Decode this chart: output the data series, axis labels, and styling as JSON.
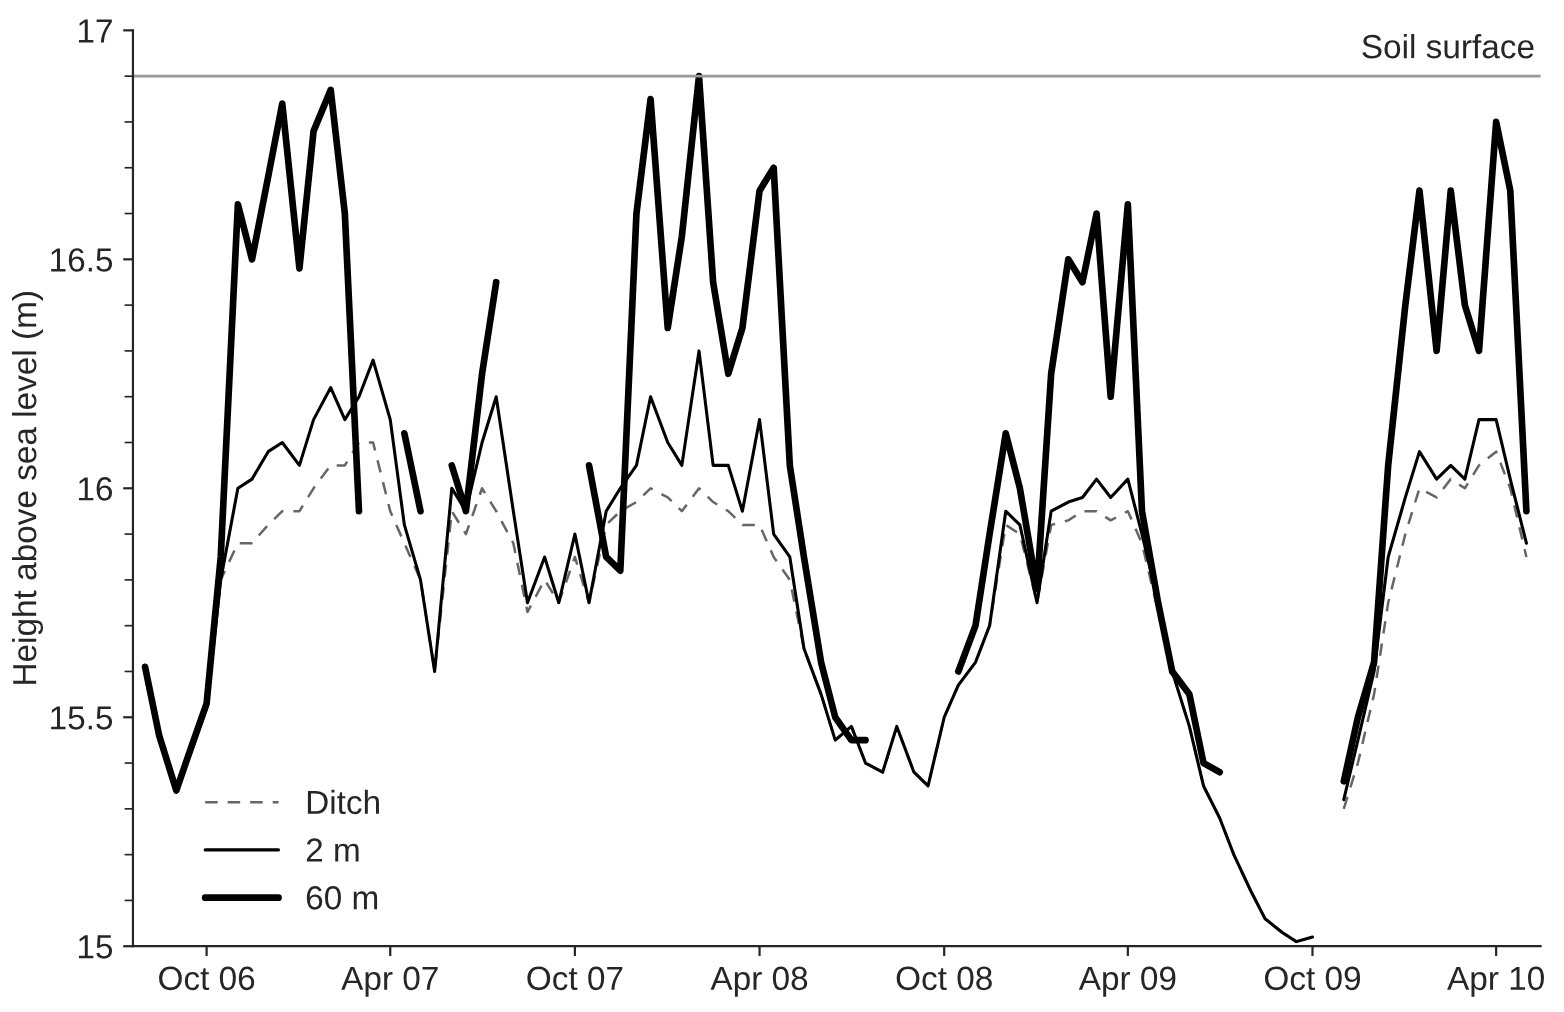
{
  "chart_data": {
    "type": "line",
    "ylabel": "Height above sea level (m)",
    "x": [
      "2006-08-01",
      "2006-08-15",
      "2006-09-01",
      "2006-09-15",
      "2006-10-01",
      "2006-10-15",
      "2006-11-01",
      "2006-11-15",
      "2006-12-01",
      "2006-12-15",
      "2007-01-01",
      "2007-01-15",
      "2007-02-01",
      "2007-02-15",
      "2007-03-01",
      "2007-03-15",
      "2007-04-01",
      "2007-04-15",
      "2007-05-01",
      "2007-05-15",
      "2007-06-01",
      "2007-06-15",
      "2007-07-01",
      "2007-07-15",
      "2007-08-01",
      "2007-08-15",
      "2007-09-01",
      "2007-09-15",
      "2007-10-01",
      "2007-10-15",
      "2007-11-01",
      "2007-11-15",
      "2007-12-01",
      "2007-12-15",
      "2008-01-01",
      "2008-01-15",
      "2008-02-01",
      "2008-02-15",
      "2008-03-01",
      "2008-03-15",
      "2008-04-01",
      "2008-04-15",
      "2008-05-01",
      "2008-05-15",
      "2008-06-01",
      "2008-06-15",
      "2008-07-01",
      "2008-07-15",
      "2008-08-01",
      "2008-08-15",
      "2008-09-01",
      "2008-09-15",
      "2008-10-01",
      "2008-10-15",
      "2008-11-01",
      "2008-11-15",
      "2008-12-01",
      "2008-12-15",
      "2009-01-01",
      "2009-01-15",
      "2009-02-01",
      "2009-02-15",
      "2009-03-01",
      "2009-03-15",
      "2009-04-01",
      "2009-04-15",
      "2009-05-01",
      "2009-05-15",
      "2009-06-01",
      "2009-06-15",
      "2009-07-01",
      "2009-07-15",
      "2009-08-01",
      "2009-08-15",
      "2009-09-01",
      "2009-09-15",
      "2009-10-01",
      "2009-10-15",
      "2009-11-01",
      "2009-11-15",
      "2009-12-01",
      "2009-12-15",
      "2010-01-01",
      "2010-01-15",
      "2010-02-01",
      "2010-02-15",
      "2010-03-01",
      "2010-03-15",
      "2010-04-01",
      "2010-04-15",
      "2010-05-01"
    ],
    "series": [
      {
        "name": "Ditch",
        "color": "#666666",
        "line_style": "dashed",
        "values": [
          15.6,
          15.45,
          15.34,
          15.42,
          15.52,
          15.8,
          15.88,
          15.88,
          15.92,
          15.95,
          15.95,
          16.0,
          16.05,
          16.05,
          16.1,
          16.1,
          15.95,
          15.88,
          15.8,
          15.6,
          15.95,
          15.9,
          16.0,
          15.95,
          15.88,
          15.73,
          15.8,
          15.75,
          15.85,
          15.75,
          15.92,
          15.95,
          15.97,
          16.0,
          15.98,
          15.95,
          16.0,
          15.97,
          15.95,
          15.92,
          15.92,
          15.85,
          15.8,
          15.65,
          15.55,
          15.45,
          15.48,
          15.4,
          15.38,
          15.48,
          15.38,
          15.35,
          15.5,
          15.57,
          15.62,
          15.7,
          15.92,
          15.9,
          15.75,
          15.92,
          15.93,
          15.95,
          15.95,
          15.93,
          15.95,
          15.88,
          15.73,
          15.6,
          15.48,
          15.35,
          15.28,
          15.2,
          15.12,
          15.06,
          15.03,
          15.01,
          15.02,
          null,
          15.3,
          15.4,
          15.55,
          15.75,
          15.9,
          16.0,
          15.98,
          16.02,
          16.0,
          16.05,
          16.08,
          16.0,
          15.85
        ]
      },
      {
        "name": "2 m",
        "color": "#000000",
        "line_style": "solid",
        "values": [
          15.6,
          15.45,
          15.34,
          15.42,
          15.52,
          15.8,
          16.0,
          16.02,
          16.08,
          16.1,
          16.05,
          16.15,
          16.22,
          16.15,
          16.2,
          16.28,
          16.15,
          15.92,
          15.8,
          15.6,
          16.0,
          15.95,
          16.1,
          16.2,
          15.95,
          15.75,
          15.85,
          15.75,
          15.9,
          15.75,
          15.95,
          16.0,
          16.05,
          16.2,
          16.1,
          16.05,
          16.3,
          16.05,
          16.05,
          15.95,
          16.15,
          15.9,
          15.85,
          15.65,
          15.55,
          15.45,
          15.48,
          15.4,
          15.38,
          15.48,
          15.38,
          15.35,
          15.5,
          15.57,
          15.62,
          15.7,
          15.95,
          15.92,
          15.75,
          15.95,
          15.97,
          15.98,
          16.02,
          15.98,
          16.02,
          15.9,
          15.75,
          15.6,
          15.48,
          15.35,
          15.28,
          15.2,
          15.12,
          15.06,
          15.03,
          15.01,
          15.02,
          null,
          15.32,
          15.45,
          15.6,
          15.85,
          15.98,
          16.08,
          16.02,
          16.05,
          16.02,
          16.15,
          16.15,
          16.02,
          15.88
        ]
      },
      {
        "name": "60 m",
        "color": "#000000",
        "line_style": "solid",
        "values": [
          15.61,
          15.46,
          15.34,
          15.43,
          15.53,
          15.85,
          16.62,
          16.5,
          16.68,
          16.84,
          16.48,
          16.78,
          16.87,
          16.6,
          15.95,
          null,
          null,
          16.12,
          15.95,
          null,
          16.05,
          15.95,
          16.25,
          16.45,
          null,
          null,
          null,
          null,
          null,
          16.05,
          15.85,
          15.82,
          16.6,
          16.85,
          16.35,
          16.55,
          16.9,
          16.45,
          16.25,
          16.35,
          16.65,
          16.7,
          16.05,
          15.85,
          15.62,
          15.5,
          15.45,
          15.45,
          null,
          null,
          null,
          null,
          null,
          15.6,
          15.7,
          15.9,
          16.12,
          16.0,
          15.78,
          16.25,
          16.5,
          16.45,
          16.6,
          16.2,
          16.62,
          15.95,
          15.75,
          15.6,
          15.55,
          15.4,
          15.38,
          null,
          null,
          null,
          null,
          null,
          null,
          null,
          15.36,
          15.5,
          15.62,
          16.05,
          16.4,
          16.65,
          16.3,
          16.65,
          16.4,
          16.3,
          16.8,
          16.65,
          15.95
        ]
      }
    ],
    "xlim": [
      "2006-07-20",
      "2010-05-15"
    ],
    "xticks": [
      {
        "value": "2006-10-01",
        "label": "Oct 06"
      },
      {
        "value": "2007-04-01",
        "label": "Apr 07"
      },
      {
        "value": "2007-10-01",
        "label": "Oct 07"
      },
      {
        "value": "2008-04-01",
        "label": "Apr 08"
      },
      {
        "value": "2008-10-01",
        "label": "Oct 08"
      },
      {
        "value": "2009-04-01",
        "label": "Apr 09"
      },
      {
        "value": "2009-10-01",
        "label": "Oct 09"
      },
      {
        "value": "2010-04-01",
        "label": "Apr 10"
      }
    ],
    "ylim": [
      15,
      17
    ],
    "yticks": [
      15,
      {
        "value": 15.1,
        "label": null
      },
      {
        "value": 15.2,
        "label": null
      },
      {
        "value": 15.3,
        "label": null
      },
      {
        "value": 15.4,
        "label": null
      },
      15.5,
      {
        "value": 15.6,
        "label": null
      },
      {
        "value": 15.7,
        "label": null
      },
      {
        "value": 15.8,
        "label": null
      },
      {
        "value": 15.9,
        "label": null
      },
      16,
      {
        "value": 16.1,
        "label": null
      },
      {
        "value": 16.2,
        "label": null
      },
      {
        "value": 16.3,
        "label": null
      },
      {
        "value": 16.4,
        "label": null
      },
      16.5,
      {
        "value": 16.6,
        "label": null
      },
      {
        "value": 16.7,
        "label": null
      },
      {
        "value": 16.8,
        "label": null
      },
      {
        "value": 16.9,
        "label": null
      },
      17
    ],
    "ref_lines": [
      {
        "axis": "y",
        "value": 16.9,
        "label": "Soil surface",
        "color": "#999999"
      }
    ],
    "legend": "bottom left",
    "grid": false
  }
}
